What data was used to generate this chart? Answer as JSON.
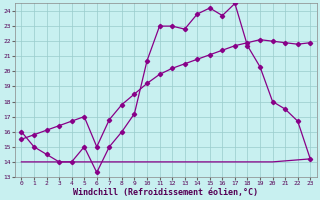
{
  "title": "",
  "xlabel": "Windchill (Refroidissement éolien,°C)",
  "bg_color": "#c8f0f0",
  "line_color": "#880088",
  "grid_color": "#99cccc",
  "xlim": [
    -0.5,
    23.5
  ],
  "ylim": [
    13,
    24.5
  ],
  "xticks": [
    0,
    1,
    2,
    3,
    4,
    5,
    6,
    7,
    8,
    9,
    10,
    11,
    12,
    13,
    14,
    15,
    16,
    17,
    18,
    19,
    20,
    21,
    22,
    23
  ],
  "yticks": [
    13,
    14,
    15,
    16,
    17,
    18,
    19,
    20,
    21,
    22,
    23,
    24
  ],
  "line1_x": [
    0,
    1,
    2,
    3,
    4,
    5,
    6,
    7,
    8,
    9,
    10,
    11,
    12,
    13,
    14,
    15,
    16,
    17,
    18,
    19,
    20,
    21,
    22,
    23
  ],
  "line1_y": [
    16,
    15,
    14.5,
    14,
    14,
    15,
    13.3,
    15,
    16,
    17.2,
    20.7,
    23,
    23,
    22.8,
    23.8,
    24.2,
    23.7,
    24.5,
    21.7,
    20.3,
    18,
    17.5,
    16.7,
    14.2
  ],
  "line2_x": [
    0,
    1,
    2,
    3,
    4,
    5,
    6,
    7,
    8,
    9,
    10,
    11,
    12,
    13,
    14,
    15,
    16,
    17,
    18,
    19,
    20,
    21,
    22,
    23
  ],
  "line2_y": [
    15.5,
    15.8,
    16.1,
    16.4,
    16.7,
    17.0,
    15.0,
    16.8,
    17.8,
    18.5,
    19.2,
    19.8,
    20.2,
    20.5,
    20.8,
    21.1,
    21.4,
    21.7,
    21.9,
    22.1,
    22.0,
    21.9,
    21.8,
    21.9
  ],
  "line3_x": [
    0,
    6,
    20,
    23
  ],
  "line3_y": [
    14,
    14,
    14,
    14.2
  ],
  "marker": "D",
  "markersize": 2.2,
  "linewidth": 0.9,
  "tick_fontsize": 4.5,
  "xlabel_fontsize": 6.0
}
